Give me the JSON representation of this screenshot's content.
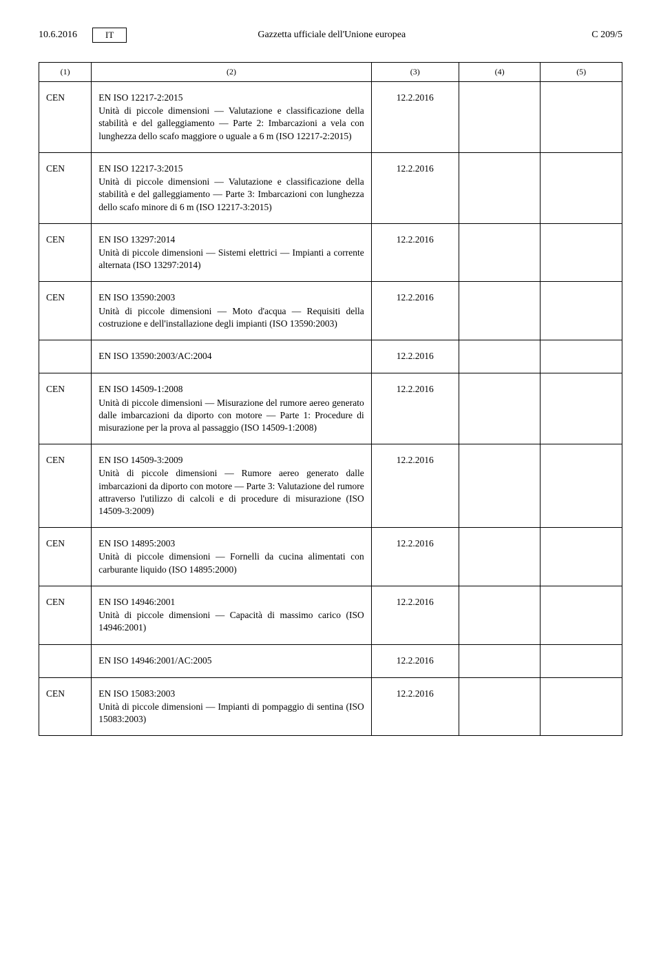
{
  "header": {
    "date": "10.6.2016",
    "lang": "IT",
    "journal": "Gazzetta ufficiale dell'Unione europea",
    "page": "C 209/5"
  },
  "columns": {
    "c1": "(1)",
    "c2": "(2)",
    "c3": "(3)",
    "c4": "(4)",
    "c5": "(5)"
  },
  "rows": [
    {
      "org": "CEN",
      "title": "EN ISO 12217-2:2015",
      "desc": "Unità di piccole dimensioni — Valutazione e classificazione della stabilità e del galleggiamento — Parte 2: Imbarcazioni a vela con lunghezza dello scafo maggiore o uguale a 6 m (ISO 12217-2:2015)",
      "date": "12.2.2016",
      "sep": true
    },
    {
      "org": "CEN",
      "title": "EN ISO 12217-3:2015",
      "desc": "Unità di piccole dimensioni — Valutazione e classificazione della stabilità e del galleggiamento — Parte 3: Imbarcazioni con lunghezza dello scafo minore di 6 m (ISO 12217-3:2015)",
      "date": "12.2.2016",
      "sep": true
    },
    {
      "org": "CEN",
      "title": "EN ISO 13297:2014",
      "desc": "Unità di piccole dimensioni — Sistemi elettrici — Impianti a corrente alternata (ISO 13297:2014)",
      "date": "12.2.2016",
      "sep": true
    },
    {
      "org": "CEN",
      "title": "EN ISO 13590:2003",
      "desc": "Unità di piccole dimensioni — Moto d'acqua — Requisiti della costruzione e dell'installazione degli impianti (ISO 13590:2003)",
      "date": "12.2.2016",
      "sep": false
    },
    {
      "org": "",
      "title": "EN ISO 13590:2003/AC:2004",
      "desc": "",
      "date": "12.2.2016",
      "sep": true
    },
    {
      "org": "CEN",
      "title": "EN ISO 14509-1:2008",
      "desc": "Unità di piccole dimensioni — Misurazione del rumore aereo generato dalle imbarcazioni da diporto con motore — Parte 1: Procedure di misurazione per la prova al passaggio (ISO 14509-1:2008)",
      "date": "12.2.2016",
      "sep": true
    },
    {
      "org": "CEN",
      "title": "EN ISO 14509-3:2009",
      "desc": "Unità di piccole dimensioni — Rumore aereo generato dalle imbarcazioni da diporto con motore — Parte 3: Valutazione del rumore attraverso l'utilizzo di calcoli e di procedure di misurazione (ISO 14509-3:2009)",
      "date": "12.2.2016",
      "sep": true
    },
    {
      "org": "CEN",
      "title": "EN ISO 14895:2003",
      "desc": "Unità di piccole dimensioni — Fornelli da cucina alimentati con carburante liquido (ISO 14895:2000)",
      "date": "12.2.2016",
      "sep": true
    },
    {
      "org": "CEN",
      "title": "EN ISO 14946:2001",
      "desc": "Unità di piccole dimensioni — Capacità di massimo carico (ISO 14946:2001)",
      "date": "12.2.2016",
      "sep": false
    },
    {
      "org": "",
      "title": "EN ISO 14946:2001/AC:2005",
      "desc": "",
      "date": "12.2.2016",
      "sep": true
    },
    {
      "org": "CEN",
      "title": "EN ISO 15083:2003",
      "desc": "Unità di piccole dimensioni — Impianti di pompaggio di sentina (ISO 15083:2003)",
      "date": "12.2.2016",
      "sep": true
    }
  ]
}
